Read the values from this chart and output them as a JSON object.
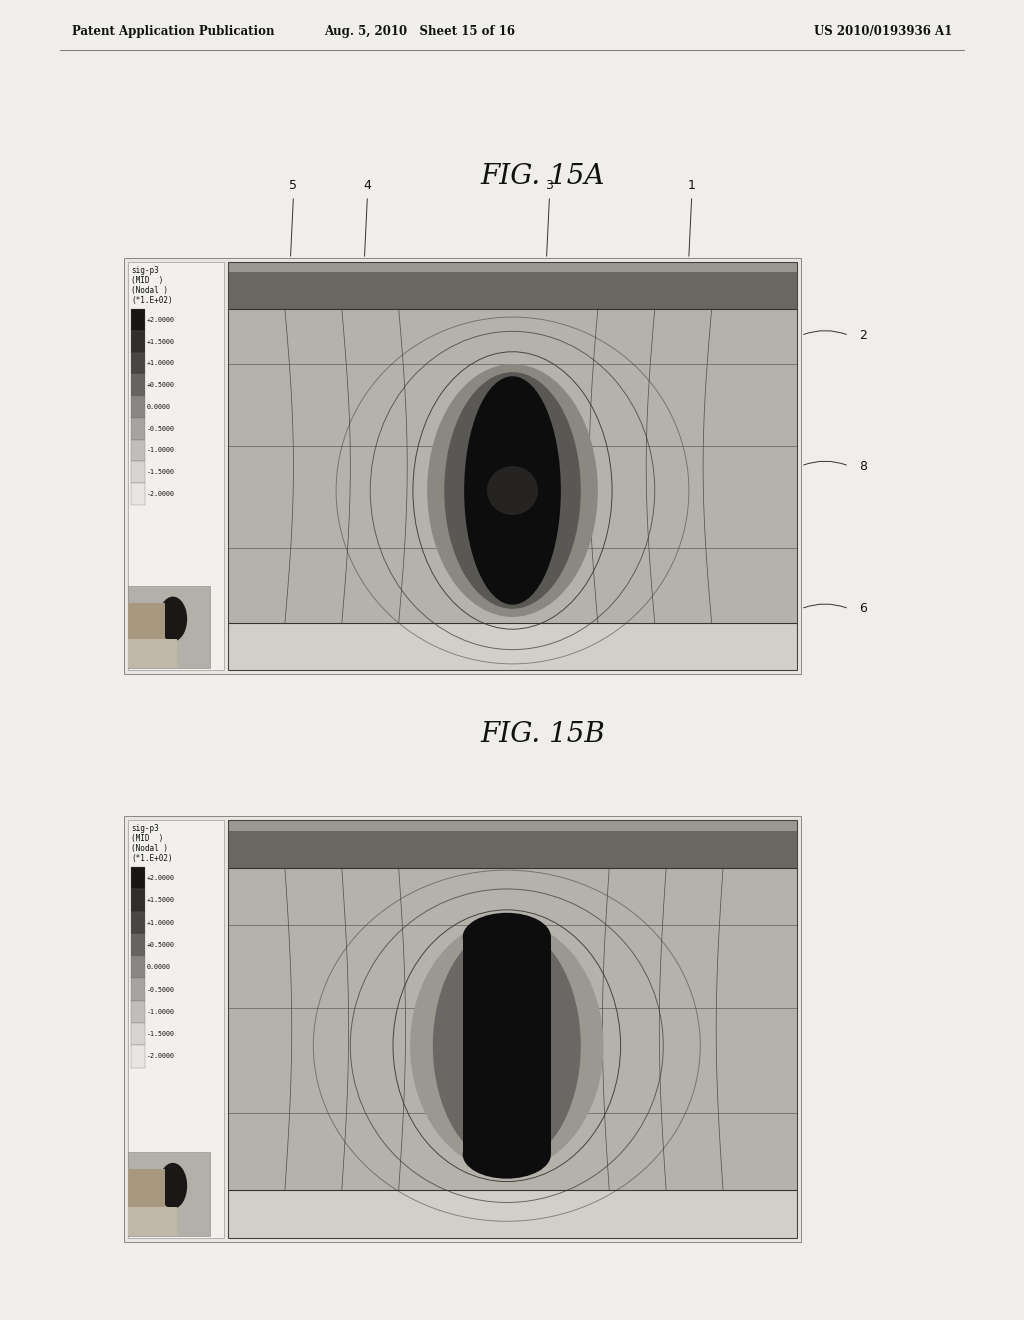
{
  "page_header_left": "Patent Application Publication",
  "page_header_center": "Aug. 5, 2010   Sheet 15 of 16",
  "page_header_right": "US 2010/0193936 A1",
  "fig_a_title": "FIG. 15A",
  "fig_b_title": "FIG. 15B",
  "colorbar_labels": [
    "sig-p3",
    "(MID  )",
    "(Nodal )",
    "(*1.E+02)"
  ],
  "colorbar_values": [
    "+2.0000",
    "+1.5000",
    "+1.0000",
    "+0.5000",
    "0.0000",
    "-0.5000",
    "-1.0000",
    "-1.5000",
    "-2.0000"
  ],
  "page_bg": "#f0eeeb",
  "panel_bg": "#e8e6e2",
  "img_bg": "#c8c5be",
  "top_band_color": "#6a6760",
  "top_thin_color": "#9a9890",
  "mid_color": "#b5b2ab",
  "bot_color": "#d2cfc8",
  "bump_color": "#0d0d0d",
  "halo_color": "#7a7872",
  "border_color": "#888880",
  "cb_bg": "#f2f0ec",
  "line_color": "#555550"
}
